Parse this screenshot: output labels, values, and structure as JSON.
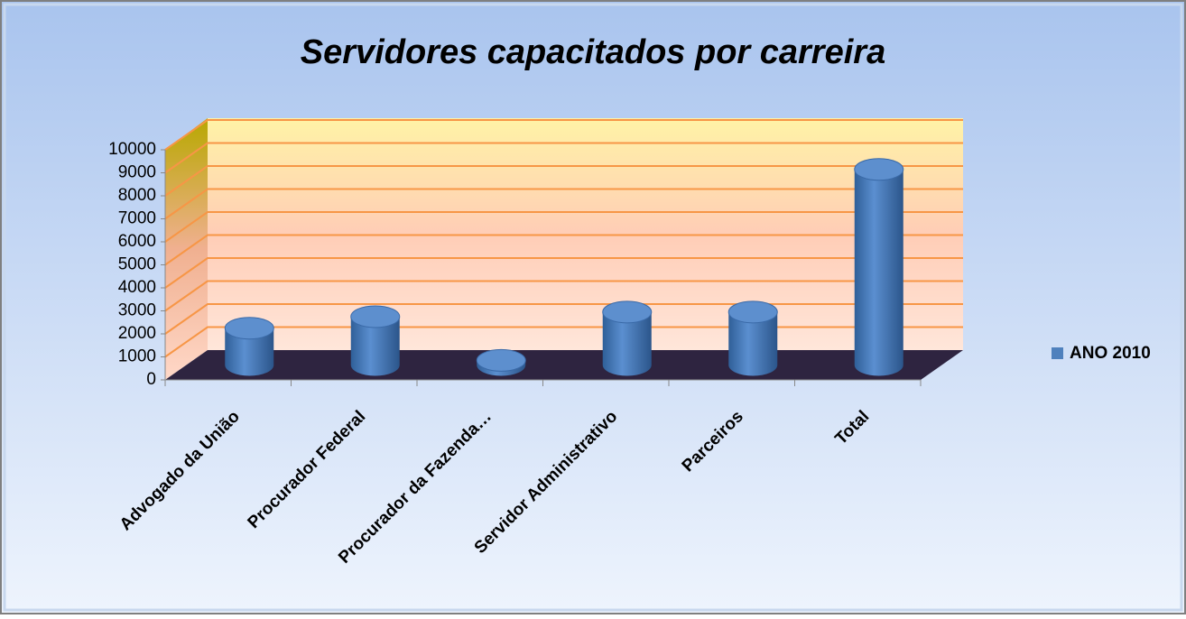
{
  "chart_data": {
    "type": "bar3d",
    "title": "Servidores capacitados por carreira",
    "categories": [
      "Advogado da União",
      "Procurador Federal",
      "Procurador da Fazenda…",
      "Servidor Administrativo",
      "Parceiros",
      "Total"
    ],
    "series": [
      {
        "name": "ANO 2010",
        "color": "#4f81bd",
        "values": [
          1600,
          2100,
          200,
          2300,
          2300,
          8500
        ]
      }
    ],
    "ylim": [
      0,
      10000
    ],
    "yticks": [
      0,
      1000,
      2000,
      3000,
      4000,
      5000,
      6000,
      7000,
      8000,
      9000,
      10000
    ],
    "grid": true,
    "legend": "right"
  }
}
